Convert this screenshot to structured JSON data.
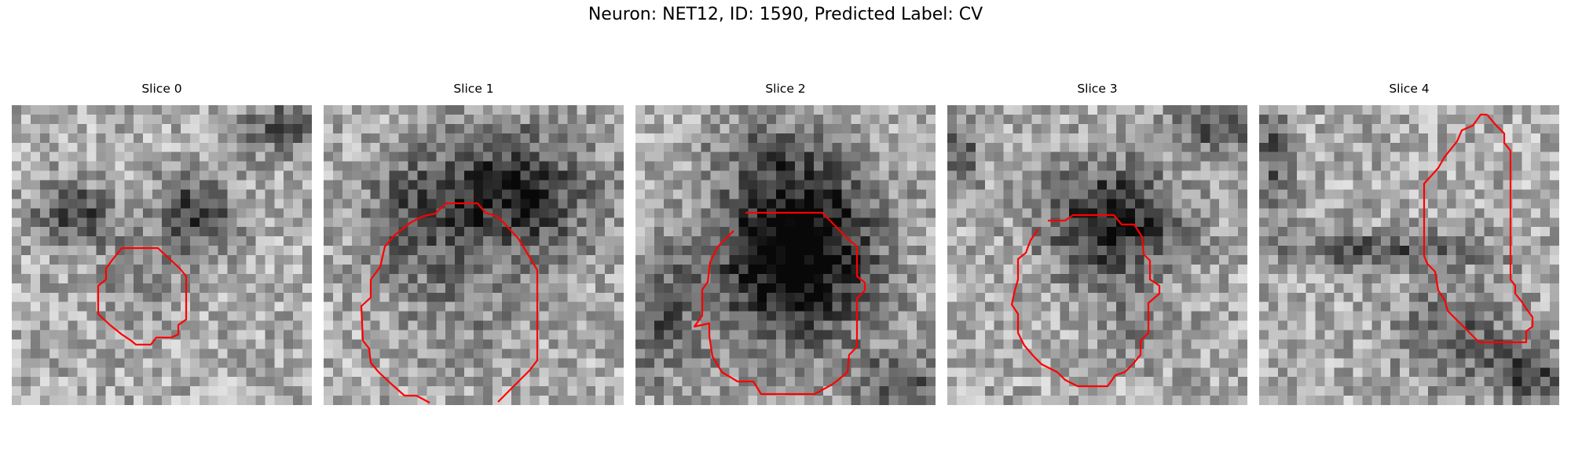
{
  "figure": {
    "title": "Neuron: NET12, ID: 1590, Predicted Label: CV",
    "contour_color": "#ff0000",
    "grid_size": 32,
    "colormap": "gray"
  },
  "slices": [
    {
      "label": "Slice 0"
    },
    {
      "label": "Slice 1"
    },
    {
      "label": "Slice 2"
    },
    {
      "label": "Slice 3"
    },
    {
      "label": "Slice 4"
    }
  ]
}
